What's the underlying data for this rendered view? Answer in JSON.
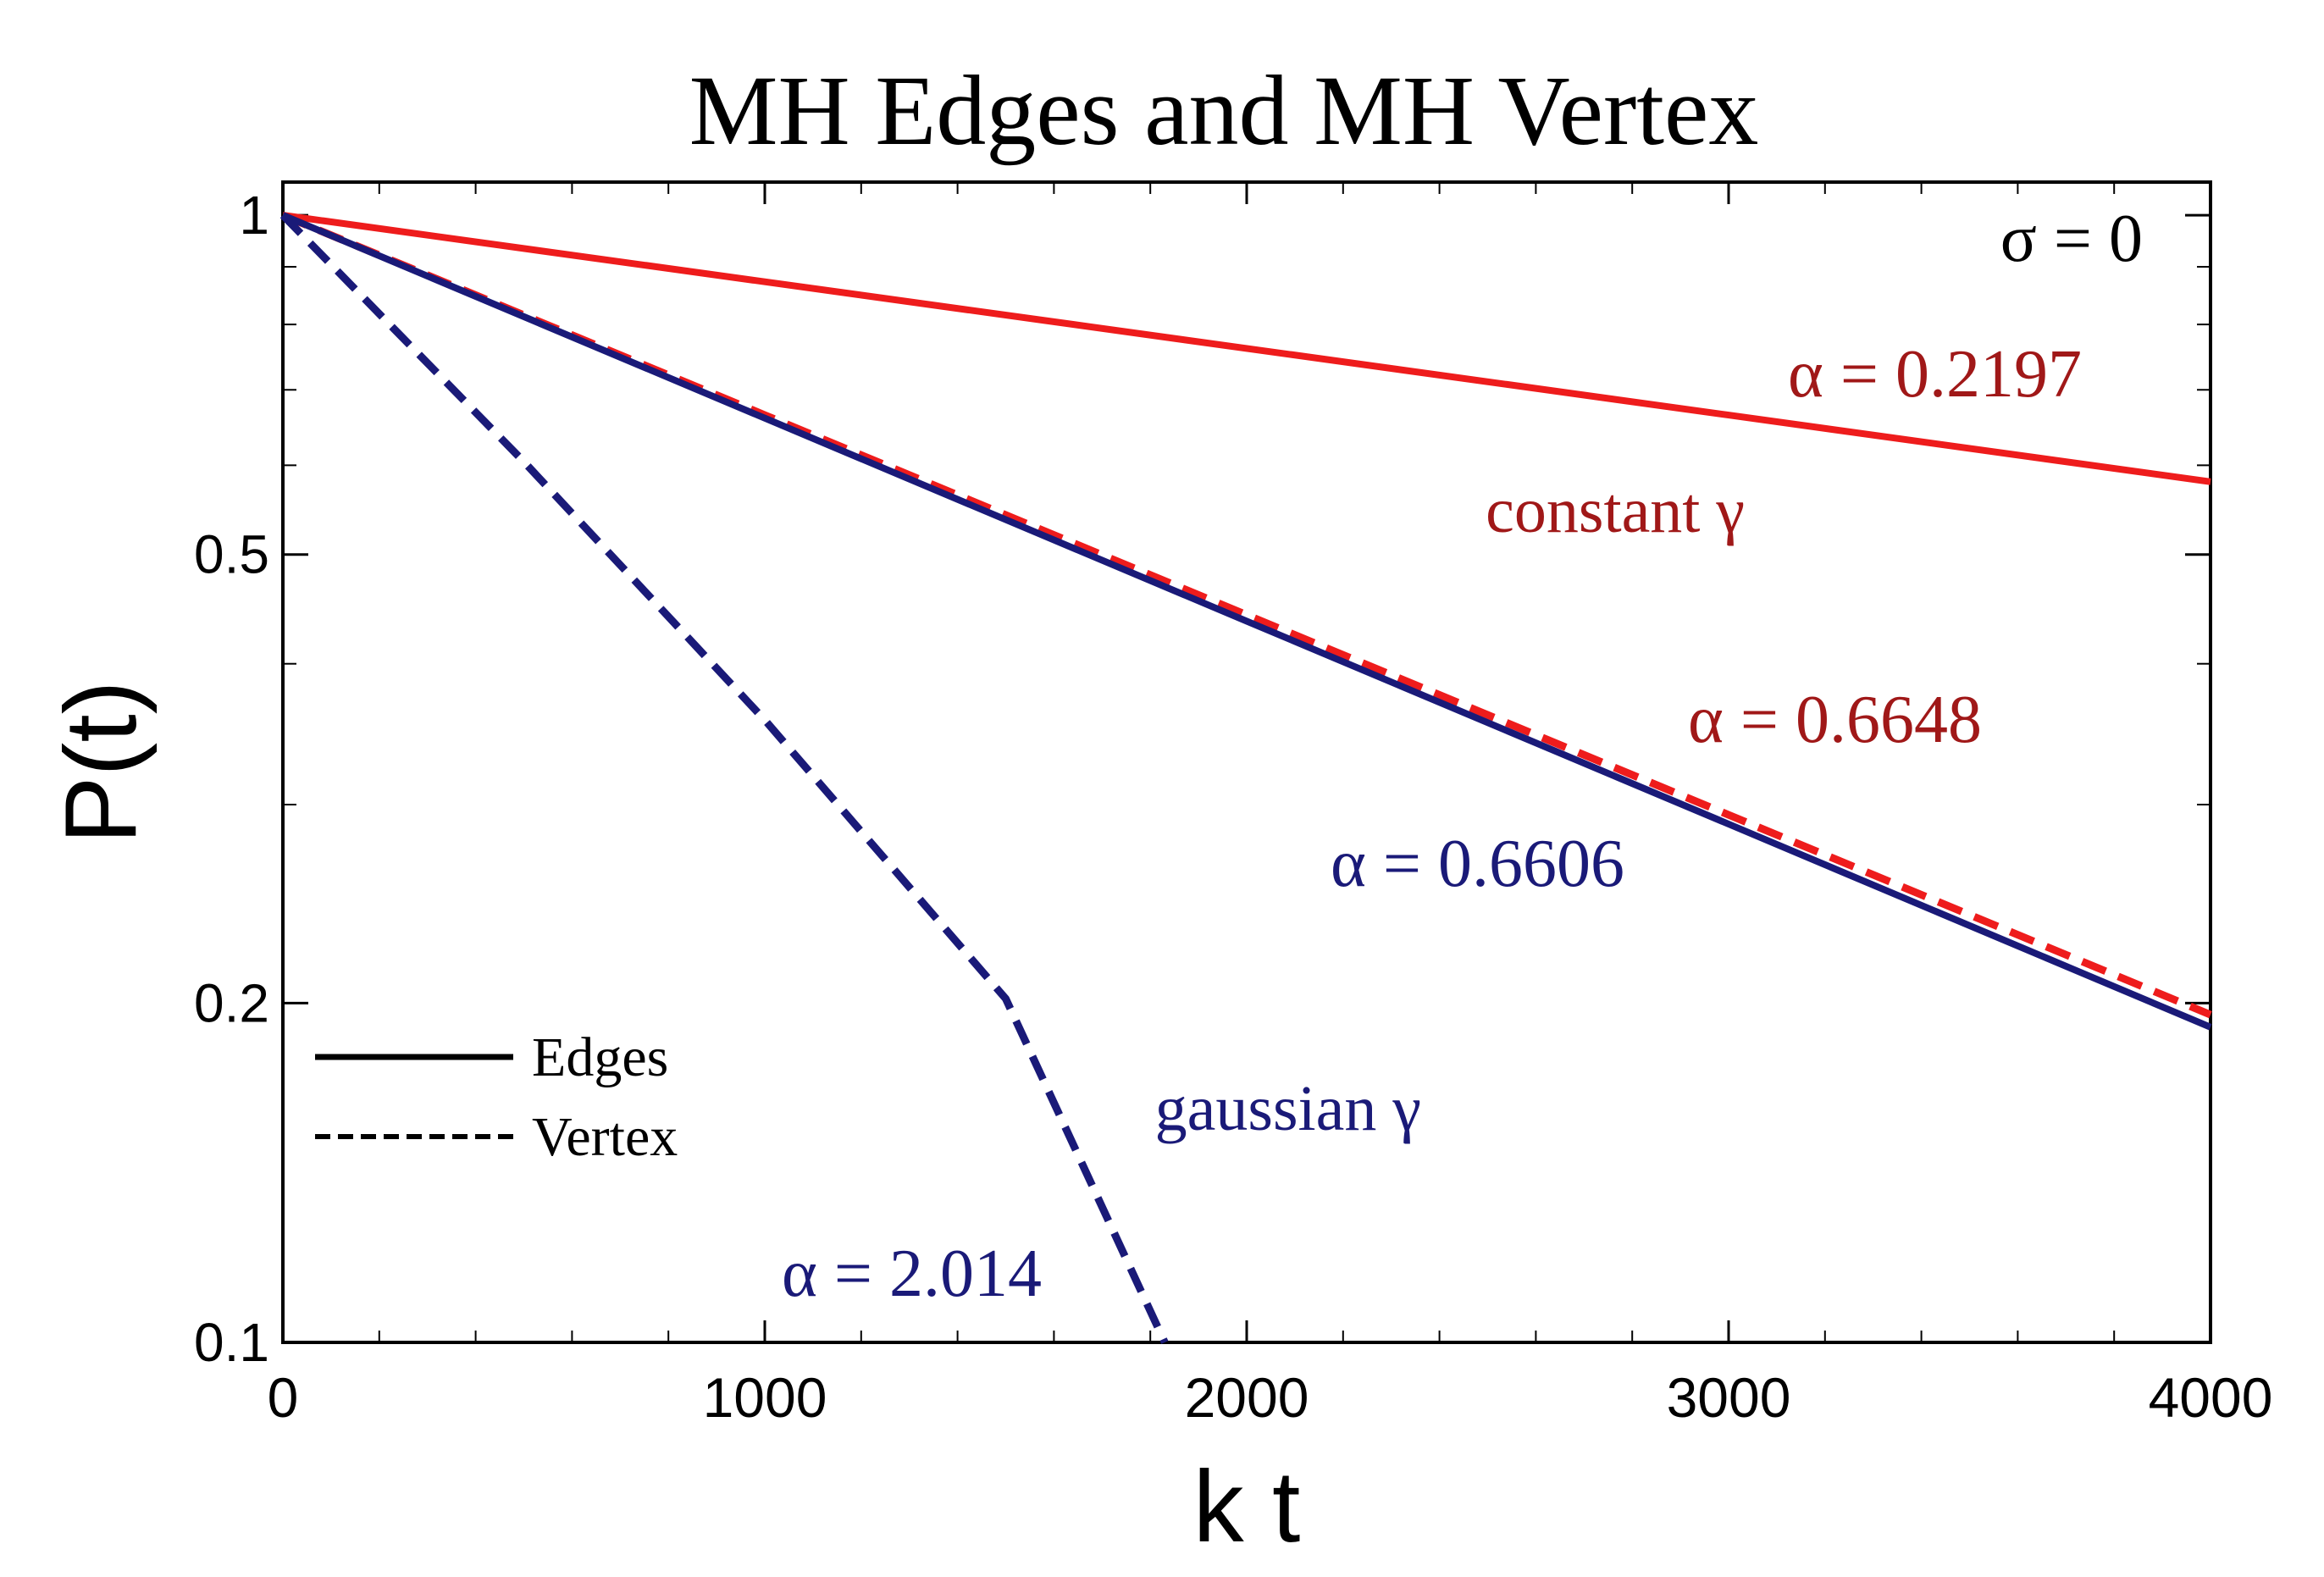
{
  "chart_data": {
    "type": "line",
    "title": "MH Edges and MH Vertex",
    "xlabel": "k t",
    "ylabel": "P(t)",
    "xlim": [
      0,
      4000
    ],
    "ylim": [
      0.1,
      1.07
    ],
    "yscale": "log",
    "x_ticks": [
      0,
      1000,
      2000,
      3000,
      4000
    ],
    "x_tick_labels": [
      "0",
      "1000",
      "2000",
      "3000",
      "4000"
    ],
    "y_ticks": [
      0.1,
      0.2,
      0.5,
      1
    ],
    "y_tick_labels": [
      "0.1",
      "0.2",
      "0.5",
      "1"
    ],
    "grid": false,
    "legend": {
      "placement": "bottom-left",
      "entries": [
        {
          "label": "Edges",
          "style": "solid"
        },
        {
          "label": "Vertex",
          "style": "dashed"
        }
      ]
    },
    "series": [
      {
        "name": "constant γ, Edges",
        "style": "solid",
        "color": "#ee1c1c",
        "x": [
          0,
          1000,
          2000,
          3000,
          4000
        ],
        "y": [
          1,
          0.8728,
          0.7617,
          0.6648,
          0.5802
        ]
      },
      {
        "name": "constant γ, Vertex",
        "style": "dashed",
        "color": "#ee1c1c",
        "x": [
          0,
          1000,
          2000,
          3000,
          4000
        ],
        "y": [
          1,
          0.6648,
          0.4419,
          0.2938,
          0.1953
        ]
      },
      {
        "name": "gaussian γ, Edges",
        "style": "solid",
        "color": "#1a1a78",
        "x": [
          0,
          1000,
          2000,
          3000,
          4000
        ],
        "y": [
          1,
          0.6606,
          0.4364,
          0.2883,
          0.1904
        ]
      },
      {
        "name": "gaussian γ, Vertex",
        "style": "dashed",
        "color": "#1a1a78",
        "x": [
          0,
          500,
          1000,
          1500,
          1830
        ],
        "y": [
          1,
          0.6044,
          0.3566,
          0.2018,
          0.1
        ]
      }
    ],
    "annotations": [
      {
        "text": "σ = 0",
        "color": "#000000"
      },
      {
        "text": "α = 0.2197",
        "color": "#a01818"
      },
      {
        "text": "constant γ",
        "color": "#a01818"
      },
      {
        "text": "α = 0.6648",
        "color": "#a01818"
      },
      {
        "text": "α = 0.6606",
        "color": "#1a1a78"
      },
      {
        "text": "gaussian γ",
        "color": "#1a1a78"
      },
      {
        "text": "α = 2.014",
        "color": "#1a1a78"
      }
    ]
  }
}
